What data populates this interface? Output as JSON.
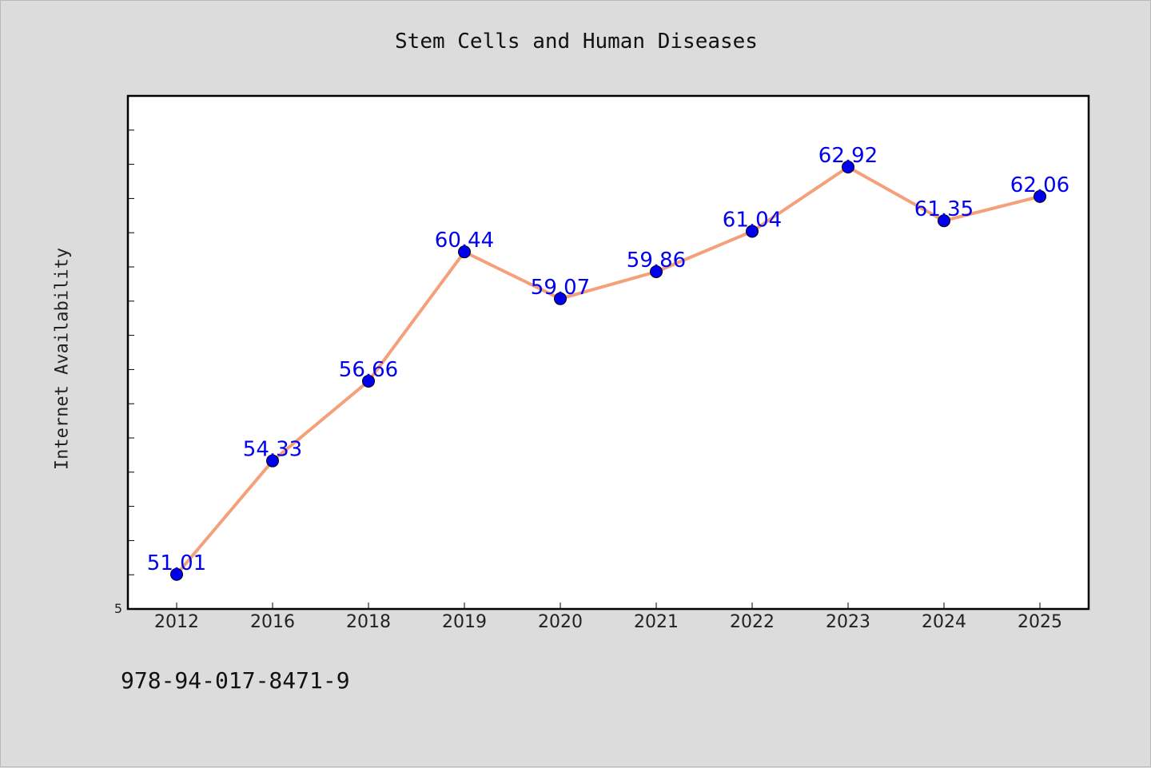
{
  "chart_data": {
    "type": "line",
    "title": "Stem Cells and Human Diseases",
    "xlabel": "",
    "ylabel": "Internet Availability",
    "categories": [
      "2012",
      "2016",
      "2018",
      "2019",
      "2020",
      "2021",
      "2022",
      "2023",
      "2024",
      "2025"
    ],
    "series": [
      {
        "values": [
          51.01,
          54.33,
          56.66,
          60.44,
          59.07,
          59.86,
          61.04,
          62.92,
          61.35,
          62.06
        ],
        "labels": [
          "51.01",
          "54.33",
          "56.66",
          "60.44",
          "59.07",
          "59.86",
          "61.04",
          "62.92",
          "61.35",
          "62.06"
        ],
        "line_color": "#f4a07a",
        "marker_color": "#0000ee",
        "label_color": "#0000ee"
      }
    ],
    "y_tick_label": "5",
    "ylim": [
      50,
      65
    ],
    "grid": false,
    "legend": "none"
  },
  "footer": {
    "code": "978-94-017-8471-9"
  }
}
